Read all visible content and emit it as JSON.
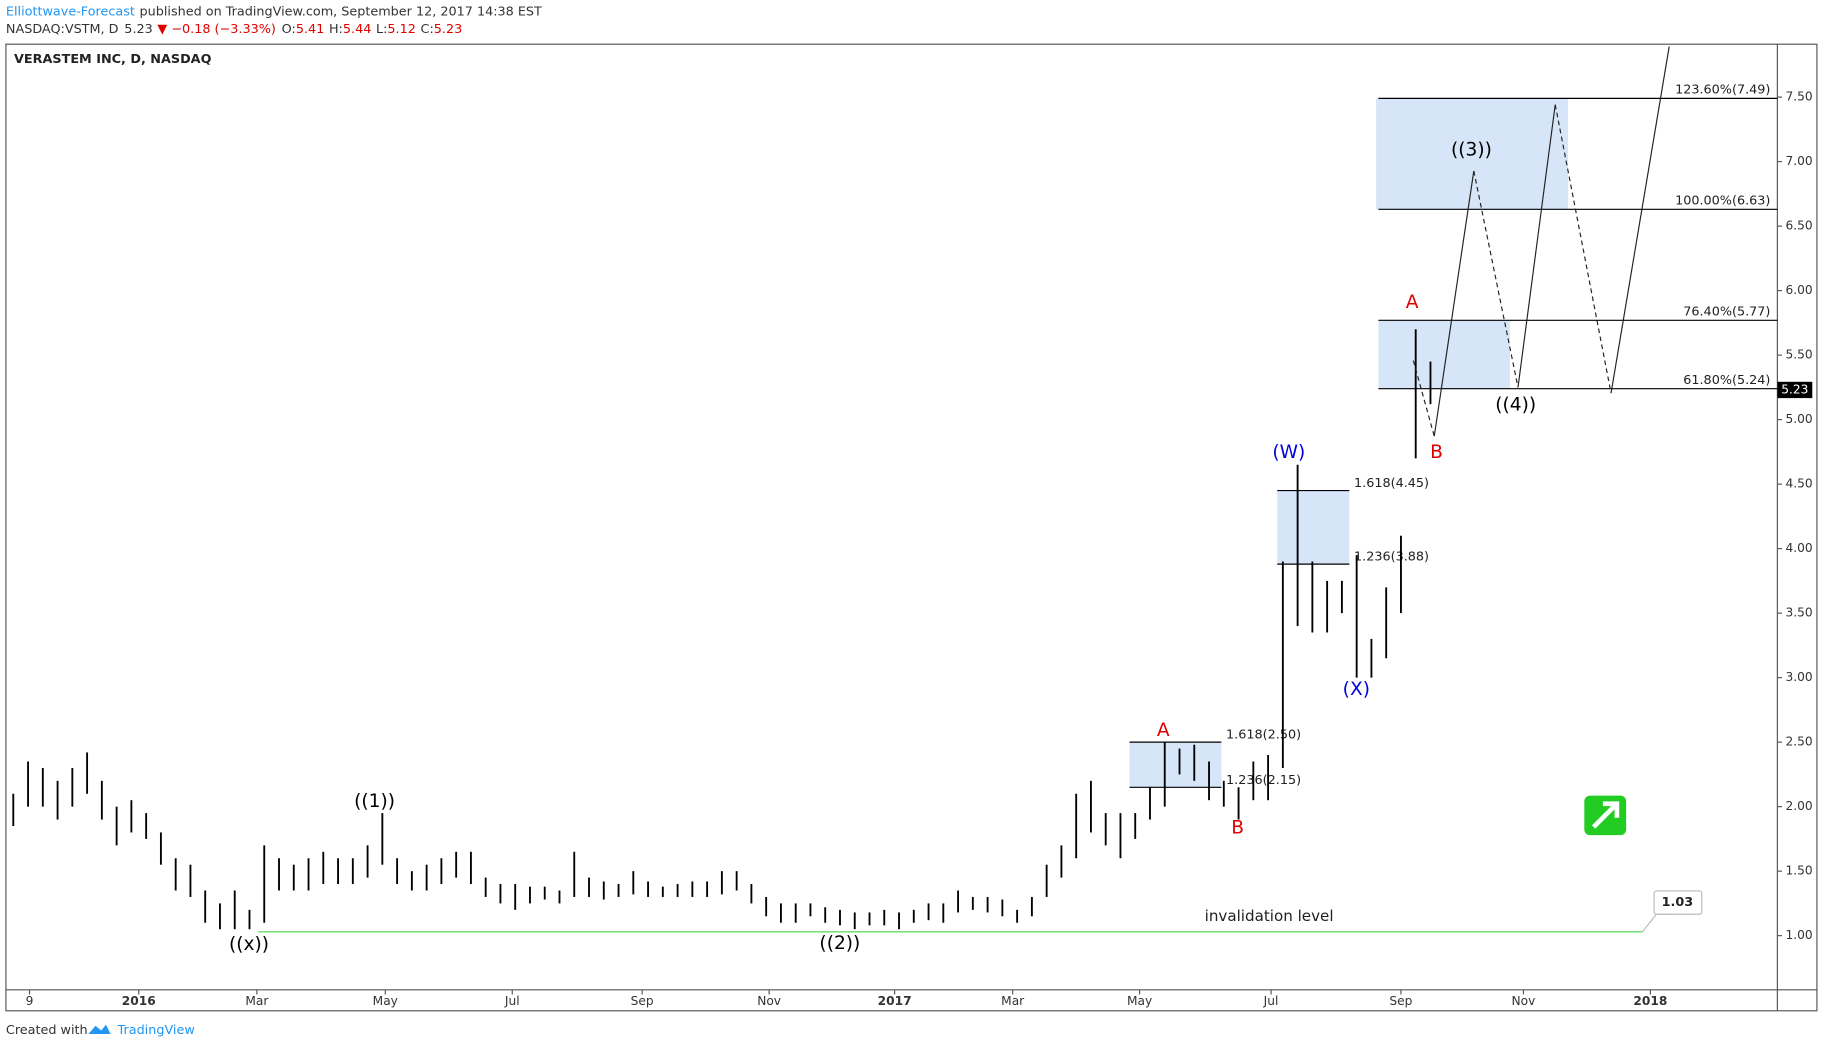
{
  "header": {
    "publisher": "Elliottwave-Forecast",
    "published": "published on TradingView.com, September 12, 2017 14:38 EST",
    "symbol": "NASDAQ:VSTM, D",
    "last": 5.23,
    "change": "▼ −0.18 (−3.33%)",
    "ohlc": [
      {
        "label": "O:",
        "value": 5.41
      },
      {
        "label": "H:",
        "value": 5.44
      },
      {
        "label": "L:",
        "value": 5.12
      },
      {
        "label": "C:",
        "value": 5.23
      }
    ]
  },
  "footer": {
    "created": "Created with",
    "brand": "TradingView"
  },
  "chart_data": {
    "type": "range",
    "title": "VERASTEM INC, D, NASDAQ",
    "color": "#000000",
    "high": [
      2.1,
      2.35,
      2.3,
      2.2,
      2.3,
      2.42,
      2.2,
      2.0,
      2.05,
      1.95,
      1.8,
      1.6,
      1.55,
      1.35,
      1.25,
      1.35,
      1.2,
      1.7,
      1.6,
      1.55,
      1.6,
      1.65,
      1.6,
      1.6,
      1.7,
      1.95,
      1.6,
      1.5,
      1.55,
      1.6,
      1.65,
      1.65,
      1.45,
      1.4,
      1.4,
      1.38,
      1.38,
      1.35,
      1.65,
      1.45,
      1.42,
      1.4,
      1.5,
      1.42,
      1.38,
      1.4,
      1.42,
      1.42,
      1.5,
      1.5,
      1.4,
      1.3,
      1.25,
      1.25,
      1.25,
      1.22,
      1.2,
      1.18,
      1.18,
      1.2,
      1.18,
      1.2,
      1.25,
      1.25,
      1.35,
      1.3,
      1.3,
      1.28,
      1.2,
      1.3,
      1.55,
      1.7,
      2.1,
      2.2,
      1.95,
      1.95,
      1.95,
      2.15,
      2.5,
      2.45,
      2.48,
      2.35,
      2.2,
      2.15,
      2.35,
      2.4,
      3.9,
      4.65,
      3.9,
      3.75,
      3.75,
      3.95,
      3.3,
      3.7,
      4.1,
      5.7,
      5.45
    ],
    "low": [
      1.85,
      2.0,
      2.0,
      1.9,
      2.0,
      2.1,
      1.9,
      1.7,
      1.8,
      1.75,
      1.55,
      1.35,
      1.3,
      1.1,
      1.05,
      1.05,
      1.05,
      1.1,
      1.35,
      1.35,
      1.35,
      1.4,
      1.4,
      1.4,
      1.45,
      1.55,
      1.4,
      1.35,
      1.35,
      1.4,
      1.45,
      1.4,
      1.3,
      1.25,
      1.2,
      1.25,
      1.28,
      1.25,
      1.3,
      1.3,
      1.28,
      1.3,
      1.32,
      1.3,
      1.3,
      1.3,
      1.3,
      1.3,
      1.32,
      1.35,
      1.25,
      1.15,
      1.1,
      1.1,
      1.15,
      1.1,
      1.08,
      1.05,
      1.08,
      1.08,
      1.05,
      1.1,
      1.12,
      1.1,
      1.18,
      1.2,
      1.18,
      1.15,
      1.1,
      1.15,
      1.3,
      1.45,
      1.6,
      1.8,
      1.7,
      1.6,
      1.75,
      1.9,
      2.0,
      2.25,
      2.2,
      2.05,
      2.0,
      1.9,
      2.05,
      2.05,
      2.3,
      3.4,
      3.35,
      3.35,
      3.5,
      3.0,
      3.0,
      3.15,
      3.5,
      4.7,
      5.12
    ],
    "xlim": [
      0,
      120
    ],
    "xticks": [
      {
        "value": 1.6,
        "label": "9"
      },
      {
        "value": 9,
        "label": "2016"
      },
      {
        "value": 17,
        "label": "Mar"
      },
      {
        "value": 25.7,
        "label": "May"
      },
      {
        "value": 34.3,
        "label": "Jul"
      },
      {
        "value": 43.1,
        "label": "Sep"
      },
      {
        "value": 51.7,
        "label": "Nov"
      },
      {
        "value": 60.2,
        "label": "2017"
      },
      {
        "value": 68.2,
        "label": "Mar"
      },
      {
        "value": 76.8,
        "label": "May"
      },
      {
        "value": 85.7,
        "label": "Jul"
      },
      {
        "value": 94.5,
        "label": "Sep"
      },
      {
        "value": 102.8,
        "label": "Nov"
      },
      {
        "value": 111.4,
        "label": "2018"
      }
    ],
    "ylim": [
      0.58,
      7.91
    ],
    "yticks": [
      {
        "value": 1,
        "label": "1.00"
      },
      {
        "value": 1.5,
        "label": "1.50"
      },
      {
        "value": 2,
        "label": "2.00"
      },
      {
        "value": 2.5,
        "label": "2.50"
      },
      {
        "value": 3,
        "label": "3.00"
      },
      {
        "value": 3.5,
        "label": "3.50"
      },
      {
        "value": 4,
        "label": "4.00"
      },
      {
        "value": 4.5,
        "label": "4.50"
      },
      {
        "value": 5,
        "label": "5.00"
      },
      {
        "value": 5.5,
        "label": "5.50"
      },
      {
        "value": 6,
        "label": "6.00"
      },
      {
        "value": 6.5,
        "label": "6.50"
      },
      {
        "value": 7,
        "label": "7.00"
      },
      {
        "value": 7.5,
        "label": "7.50"
      }
    ],
    "last_price": 5.23,
    "fib_levels": [
      {
        "label": "123.60%(7.49)",
        "value": 7.49
      },
      {
        "label": "100.00%(6.63)",
        "value": 6.63
      },
      {
        "label": "76.40%(5.77)",
        "value": 5.77
      },
      {
        "label": "61.80%(5.24)",
        "value": 5.24
      },
      {
        "label": "1.618(4.45)",
        "value": 4.45
      },
      {
        "label": "1.236(3.88)",
        "value": 3.88
      },
      {
        "label": "1.618(2.50)",
        "value": 2.5
      },
      {
        "label": "1.236(2.15)",
        "value": 2.15
      }
    ],
    "wave_labels": [
      {
        "text": "((x))",
        "color": "#000000"
      },
      {
        "text": "((1))",
        "color": "#000000"
      },
      {
        "text": "((2))",
        "color": "#000000"
      },
      {
        "text": "A",
        "color": "#e00000"
      },
      {
        "text": "B",
        "color": "#e00000"
      },
      {
        "text": "(W)",
        "color": "#0000e0"
      },
      {
        "text": "(X)",
        "color": "#0000e0"
      },
      {
        "text": "A",
        "color": "#e00000"
      },
      {
        "text": "B",
        "color": "#e00000"
      },
      {
        "text": "((3))",
        "color": "#000000"
      },
      {
        "text": "((4))",
        "color": "#000000"
      }
    ],
    "invalidation": {
      "label": "invalidation level",
      "value": 1.03,
      "color": "#66dd66"
    }
  }
}
